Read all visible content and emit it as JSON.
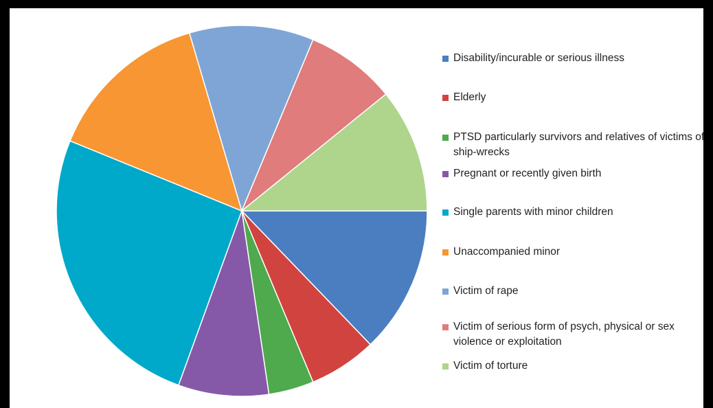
{
  "chart_data": {
    "type": "pie",
    "start_angle_deg": 0,
    "direction": "clockwise",
    "slices": [
      {
        "label": "Disability/incurable or serious illness",
        "value": 13,
        "color": "#4A7EC1"
      },
      {
        "label": "Elderly",
        "value": 6,
        "color": "#D1433F"
      },
      {
        "label": "PTSD particularly survivors and relatives of victims of ship-wrecks",
        "value": 4,
        "color": "#4EAA4D"
      },
      {
        "label": "Pregnant or recently given birth",
        "value": 8,
        "color": "#8659A8"
      },
      {
        "label": "Single parents with minor children",
        "value": 26,
        "color": "#00A9C9"
      },
      {
        "label": "Unaccompanied minor",
        "value": 14.5,
        "color": "#F79632"
      },
      {
        "label": "Victim of rape",
        "value": 11,
        "color": "#7FA5D6"
      },
      {
        "label": "Victim of serious form of psych, physical or sex violence or exploitation",
        "value": 8,
        "color": "#E07C7C"
      },
      {
        "label": "Victim of torture",
        "value": 11,
        "color": "#AFD48C"
      }
    ],
    "legend_position": "right"
  }
}
